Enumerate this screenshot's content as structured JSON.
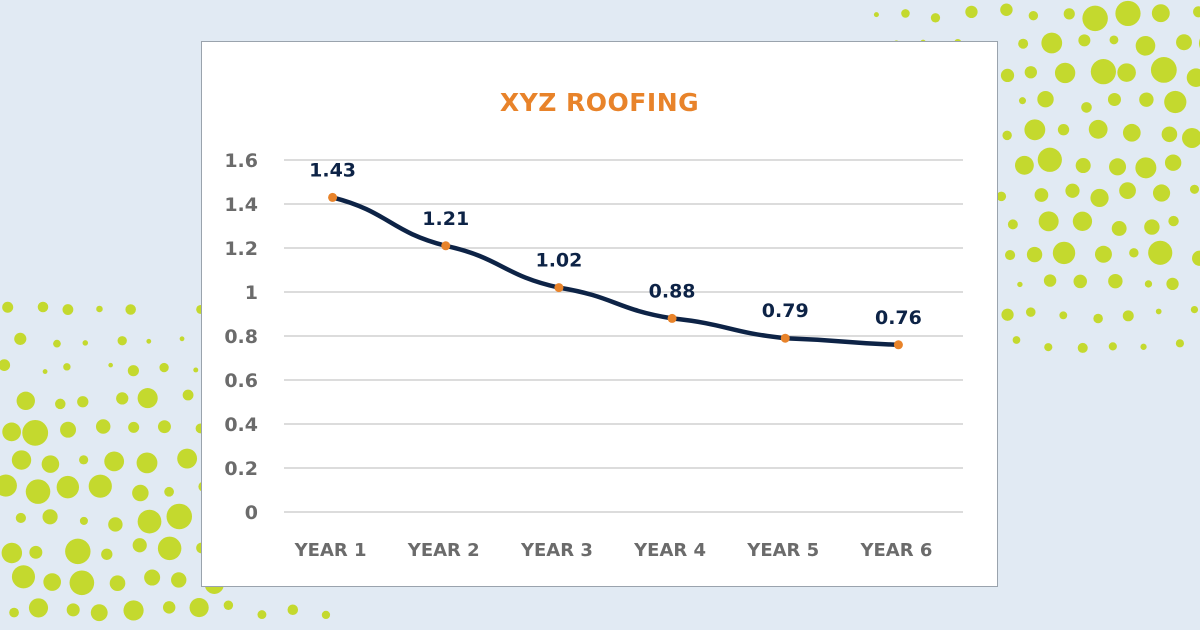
{
  "colors": {
    "background": "#e1eaf3",
    "dots": "#c4d92e",
    "line": "#0d2346",
    "marker": "#e8832a",
    "title": "#e8832a",
    "axis_text": "#6b6b6b",
    "grid": "#c8c8c8"
  },
  "chart_data": {
    "type": "line",
    "title": "XYZ ROOFING",
    "categories": [
      "YEAR 1",
      "YEAR 2",
      "YEAR 3",
      "YEAR 4",
      "YEAR 5",
      "YEAR 6"
    ],
    "values": [
      1.43,
      1.21,
      1.02,
      0.88,
      0.79,
      0.76
    ],
    "data_labels": [
      "1.43",
      "1.21",
      "1.02",
      "0.88",
      "0.79",
      "0.76"
    ],
    "y_ticks": [
      0,
      0.2,
      0.4,
      0.6,
      0.8,
      1,
      1.2,
      1.4,
      1.6
    ],
    "y_tick_labels": [
      "0",
      "0.2",
      "0.4",
      "0.6",
      "0.8",
      "1",
      "1.2",
      "1.4",
      "1.6"
    ],
    "ylim": [
      0,
      1.6
    ],
    "xlabel": "",
    "ylabel": "",
    "grid": true,
    "legend": "none"
  }
}
